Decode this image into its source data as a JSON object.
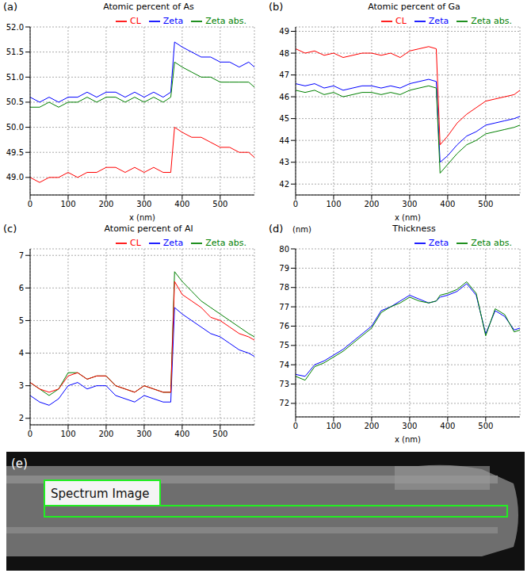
{
  "chart_data": [
    {
      "type": "line",
      "label": "(a)",
      "title": "Atomic percent of As",
      "xlabel": "x (nm)",
      "x": [
        0,
        25,
        50,
        75,
        100,
        125,
        150,
        175,
        200,
        225,
        250,
        275,
        300,
        325,
        350,
        370,
        380,
        400,
        425,
        450,
        475,
        500,
        525,
        550,
        575,
        590
      ],
      "series": [
        {
          "name": "Zeta",
          "color": "#0000ff",
          "values": [
            50.6,
            50.5,
            50.6,
            50.5,
            50.6,
            50.6,
            50.7,
            50.6,
            50.7,
            50.7,
            50.6,
            50.7,
            50.6,
            50.7,
            50.6,
            50.7,
            51.7,
            51.6,
            51.5,
            51.4,
            51.4,
            51.3,
            51.3,
            51.2,
            51.3,
            51.2
          ]
        },
        {
          "name": "Zeta abs.",
          "color": "#008000",
          "values": [
            50.4,
            50.4,
            50.5,
            50.4,
            50.5,
            50.5,
            50.6,
            50.5,
            50.6,
            50.6,
            50.5,
            50.6,
            50.5,
            50.6,
            50.5,
            50.6,
            51.3,
            51.2,
            51.1,
            51.0,
            51.0,
            50.9,
            50.9,
            50.9,
            50.9,
            50.8
          ]
        },
        {
          "name": "CL",
          "color": "#ff0000",
          "values": [
            49.0,
            48.9,
            49.0,
            49.0,
            49.1,
            49.0,
            49.1,
            49.1,
            49.2,
            49.2,
            49.1,
            49.2,
            49.1,
            49.2,
            49.1,
            49.1,
            50.0,
            49.9,
            49.8,
            49.8,
            49.7,
            49.6,
            49.6,
            49.5,
            49.5,
            49.4
          ]
        }
      ],
      "xlim": [
        0,
        590
      ],
      "xticks": [
        0,
        100,
        200,
        300,
        400,
        500
      ],
      "ylim": [
        48.65,
        52.0
      ],
      "yticks": [
        {
          "value": 49,
          "label": "49.0"
        },
        {
          "value": 49.5,
          "label": "49.5"
        },
        {
          "value": 50,
          "label": "50.0"
        },
        {
          "value": 50.5,
          "label": "50.5"
        },
        {
          "value": 51,
          "label": "51.0"
        },
        {
          "value": 51.5,
          "label": "51.5"
        },
        {
          "value": 52,
          "label": "52.0"
        }
      ],
      "grid": true,
      "legend": "top"
    },
    {
      "type": "line",
      "label": "(b)",
      "title": "Atomic percent of Ga",
      "xlabel": "x (nm)",
      "x": [
        0,
        25,
        50,
        75,
        100,
        125,
        150,
        175,
        200,
        225,
        250,
        275,
        300,
        325,
        350,
        370,
        380,
        400,
        425,
        450,
        475,
        500,
        525,
        550,
        575,
        590
      ],
      "series": [
        {
          "name": "Zeta",
          "color": "#0000ff",
          "values": [
            46.6,
            46.5,
            46.6,
            46.4,
            46.5,
            46.3,
            46.4,
            46.5,
            46.5,
            46.4,
            46.5,
            46.4,
            46.6,
            46.7,
            46.8,
            46.7,
            43.0,
            43.3,
            43.8,
            44.2,
            44.4,
            44.7,
            44.8,
            44.9,
            45.0,
            45.1
          ]
        },
        {
          "name": "Zeta abs.",
          "color": "#008000",
          "values": [
            46.3,
            46.2,
            46.3,
            46.1,
            46.2,
            46.0,
            46.1,
            46.2,
            46.2,
            46.1,
            46.2,
            46.1,
            46.3,
            46.4,
            46.5,
            46.4,
            42.5,
            42.9,
            43.4,
            43.8,
            44.0,
            44.3,
            44.4,
            44.5,
            44.6,
            44.7
          ]
        },
        {
          "name": "CL",
          "color": "#ff0000",
          "values": [
            48.2,
            48.0,
            48.1,
            47.9,
            48.0,
            47.8,
            47.9,
            48.0,
            48.0,
            47.9,
            48.0,
            47.8,
            48.1,
            48.2,
            48.3,
            48.2,
            43.8,
            44.2,
            44.8,
            45.2,
            45.5,
            45.8,
            45.9,
            46.0,
            46.1,
            46.3
          ]
        }
      ],
      "xlim": [
        0,
        590
      ],
      "xticks": [
        0,
        100,
        200,
        300,
        400,
        500
      ],
      "ylim": [
        41.5,
        49.2
      ],
      "yticks": [
        42,
        43,
        44,
        45,
        46,
        47,
        48,
        49
      ],
      "grid": true,
      "legend": "top"
    },
    {
      "type": "line",
      "label": "(c)",
      "title": "Atomic percent of Al",
      "x": [
        0,
        25,
        50,
        75,
        100,
        125,
        150,
        175,
        200,
        225,
        250,
        275,
        300,
        325,
        350,
        370,
        380,
        400,
        425,
        450,
        475,
        500,
        525,
        550,
        575,
        590
      ],
      "series": [
        {
          "name": "Zeta",
          "color": "#0000ff",
          "values": [
            2.7,
            2.5,
            2.4,
            2.6,
            3.0,
            3.1,
            2.9,
            3.0,
            3.0,
            2.7,
            2.6,
            2.5,
            2.7,
            2.6,
            2.5,
            2.5,
            5.4,
            5.2,
            5.0,
            4.8,
            4.6,
            4.5,
            4.3,
            4.1,
            4.0,
            3.9
          ]
        },
        {
          "name": "Zeta abs.",
          "color": "#008000",
          "values": [
            3.1,
            2.9,
            2.7,
            2.9,
            3.4,
            3.4,
            3.2,
            3.3,
            3.3,
            3.0,
            2.9,
            2.8,
            3.0,
            2.9,
            2.8,
            2.8,
            6.5,
            6.2,
            5.9,
            5.6,
            5.4,
            5.2,
            5.0,
            4.8,
            4.6,
            4.5
          ]
        },
        {
          "name": "CL",
          "color": "#ff0000",
          "values": [
            3.1,
            2.9,
            2.8,
            2.9,
            3.3,
            3.4,
            3.2,
            3.3,
            3.3,
            3.0,
            2.9,
            2.8,
            3.0,
            2.9,
            2.8,
            2.8,
            6.2,
            5.8,
            5.6,
            5.4,
            5.1,
            5.0,
            4.8,
            4.6,
            4.5,
            4.4
          ]
        }
      ],
      "xlim": [
        0,
        590
      ],
      "xticks": [
        0,
        100,
        200,
        300,
        400,
        500
      ],
      "ylim": [
        1.8,
        7.2
      ],
      "yticks": [
        2,
        3,
        4,
        5,
        6,
        7
      ],
      "grid": true,
      "legend": "top"
    },
    {
      "type": "line",
      "label": "(d)",
      "title": "Thickness",
      "xlabel": "x (nm)",
      "ylabel": "(nm)",
      "x": [
        0,
        25,
        50,
        75,
        100,
        125,
        150,
        175,
        200,
        225,
        250,
        275,
        300,
        325,
        350,
        370,
        380,
        400,
        425,
        450,
        475,
        500,
        525,
        550,
        575,
        590
      ],
      "series": [
        {
          "name": "Zeta",
          "color": "#0000ff",
          "values": [
            73.5,
            73.4,
            74.0,
            74.2,
            74.5,
            74.8,
            75.2,
            75.6,
            76.0,
            76.8,
            77.0,
            77.3,
            77.6,
            77.4,
            77.2,
            77.3,
            77.5,
            77.6,
            77.8,
            78.2,
            77.6,
            75.6,
            76.8,
            76.5,
            75.8,
            75.9
          ]
        },
        {
          "name": "Zeta abs.",
          "color": "#008000",
          "values": [
            73.4,
            73.2,
            73.9,
            74.1,
            74.4,
            74.7,
            75.1,
            75.5,
            75.9,
            76.7,
            77.0,
            77.2,
            77.5,
            77.3,
            77.2,
            77.3,
            77.6,
            77.7,
            77.9,
            78.3,
            77.7,
            75.5,
            76.9,
            76.6,
            75.7,
            75.8
          ]
        }
      ],
      "xlim": [
        0,
        590
      ],
      "xticks": [
        0,
        100,
        200,
        300,
        400,
        500
      ],
      "ylim": [
        71.3,
        80
      ],
      "yticks": [
        72,
        73,
        74,
        75,
        76,
        77,
        78,
        79,
        80
      ],
      "grid": true,
      "legend": "top"
    }
  ],
  "image": {
    "label": "(e)",
    "text": "Spectrum Image"
  }
}
